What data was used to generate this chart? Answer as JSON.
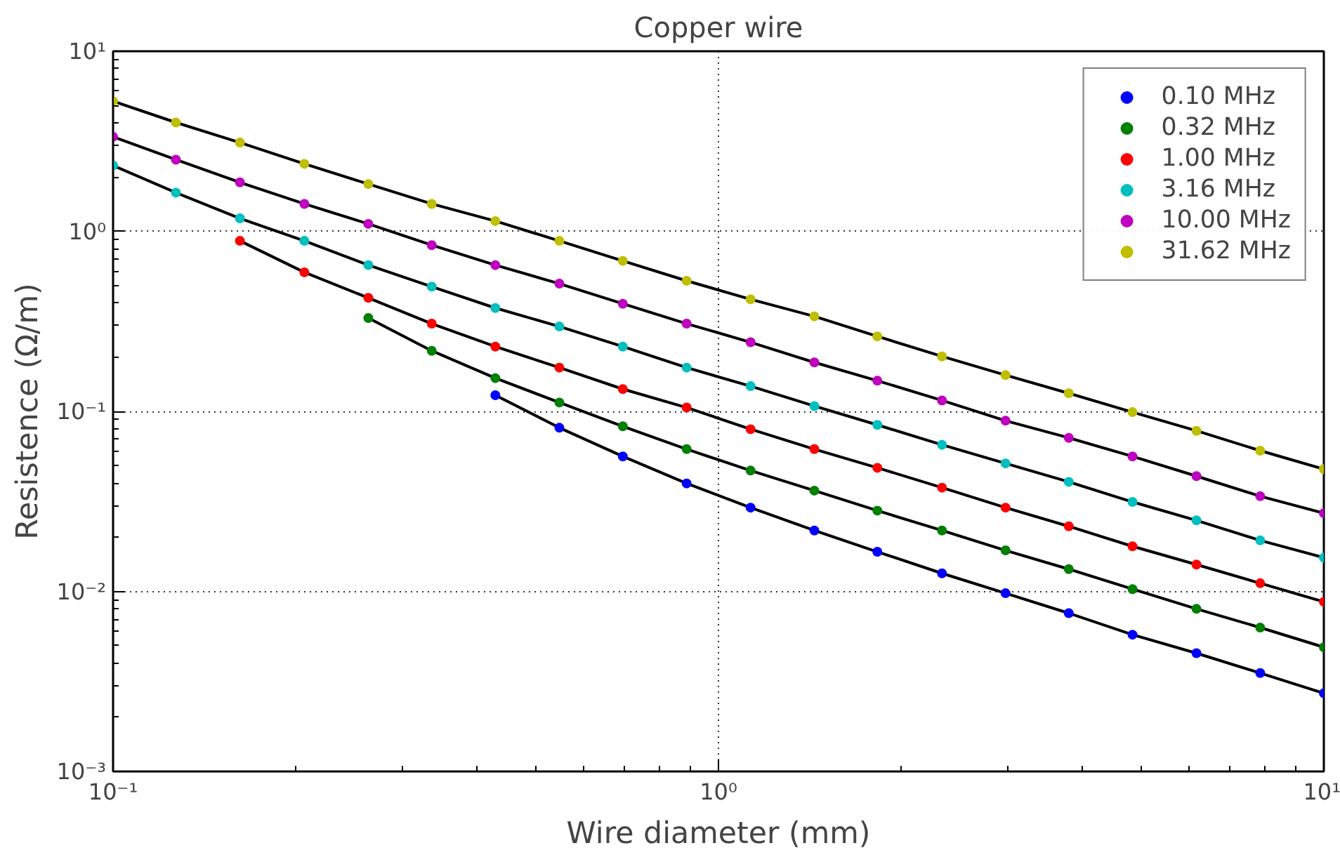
{
  "chart_data": {
    "type": "scatter",
    "title": "Copper wire",
    "xlabel": "Wire diameter (mm)",
    "ylabel": "Resistence (Ω/m)",
    "log": "xy",
    "grid": true,
    "legend": "top right",
    "marker": "circle",
    "xlim": [
      0.1,
      10
    ],
    "ylim": [
      0.001,
      10
    ],
    "xticks": [
      {
        "value": 0.1,
        "label": "10⁻¹"
      },
      {
        "value": 1,
        "label": "10⁰"
      },
      {
        "value": 10,
        "label": "10¹"
      }
    ],
    "yticks": [
      {
        "value": 0.001,
        "label": "10⁻³"
      },
      {
        "value": 0.01,
        "label": "10⁻²"
      },
      {
        "value": 0.1,
        "label": "10⁻¹"
      },
      {
        "value": 1,
        "label": "10⁰"
      },
      {
        "value": 10,
        "label": "10¹"
      }
    ],
    "x": [
      0.1,
      0.127,
      0.162,
      0.207,
      0.264,
      0.336,
      0.428,
      0.546,
      0.695,
      0.886,
      1.13,
      1.44,
      1.83,
      2.34,
      2.98,
      3.79,
      4.83,
      6.16,
      7.85,
      10
    ],
    "series": [
      {
        "type": "line",
        "color": "#000000",
        "line_style": "solid",
        "marker": "none",
        "values": [
          null,
          null,
          null,
          null,
          null,
          null,
          0.123,
          0.0811,
          0.0562,
          0.0398,
          0.0292,
          0.0218,
          0.0166,
          0.0126,
          0.00977,
          0.00757,
          0.00575,
          0.00454,
          0.00352,
          0.00272
        ]
      },
      {
        "type": "line",
        "color": "#000000",
        "line_style": "solid",
        "marker": "none",
        "values": [
          null,
          null,
          null,
          null,
          0.33,
          0.217,
          0.153,
          0.112,
          0.0826,
          0.0617,
          0.0469,
          0.0363,
          0.0281,
          0.0218,
          0.0169,
          0.0133,
          0.0103,
          0.008,
          0.0063,
          0.0049
        ]
      },
      {
        "type": "line",
        "color": "#000000",
        "line_style": "solid",
        "marker": "none",
        "values": [
          null,
          null,
          0.885,
          0.592,
          0.427,
          0.307,
          0.229,
          0.175,
          0.133,
          0.105,
          0.0796,
          0.0617,
          0.0486,
          0.0377,
          0.0292,
          0.023,
          0.0178,
          0.0141,
          0.0111,
          0.00875
        ]
      },
      {
        "type": "line",
        "color": "#000000",
        "line_style": "solid",
        "marker": "none",
        "values": [
          2.32,
          1.64,
          1.18,
          0.885,
          0.649,
          0.493,
          0.375,
          0.296,
          0.229,
          0.175,
          0.138,
          0.107,
          0.0841,
          0.0652,
          0.0514,
          0.0406,
          0.0314,
          0.0248,
          0.0192,
          0.0154
        ]
      },
      {
        "type": "line",
        "color": "#000000",
        "line_style": "solid",
        "marker": "none",
        "values": [
          3.35,
          2.5,
          1.87,
          1.42,
          1.1,
          0.838,
          0.649,
          0.512,
          0.396,
          0.307,
          0.242,
          0.187,
          0.148,
          0.115,
          0.0887,
          0.0713,
          0.0562,
          0.0437,
          0.0338,
          0.0272
        ]
      },
      {
        "type": "line",
        "color": "#000000",
        "line_style": "solid",
        "marker": "none",
        "values": [
          5.28,
          4.02,
          3.11,
          2.37,
          1.83,
          1.42,
          1.14,
          0.885,
          0.685,
          0.531,
          0.419,
          0.337,
          0.261,
          0.202,
          0.159,
          0.126,
          0.099,
          0.078,
          0.0605,
          0.0478
        ]
      },
      {
        "name": "0.10 MHz",
        "color": "#0000ff",
        "values": [
          null,
          null,
          null,
          null,
          null,
          null,
          0.123,
          0.0811,
          0.0562,
          0.0398,
          0.0292,
          0.0218,
          0.0166,
          0.0126,
          0.00977,
          0.00757,
          0.00575,
          0.00454,
          0.00352,
          0.00272
        ]
      },
      {
        "name": "0.32 MHz",
        "color": "#008000",
        "values": [
          null,
          null,
          null,
          null,
          0.33,
          0.217,
          0.153,
          0.112,
          0.0826,
          0.0617,
          0.0469,
          0.0363,
          0.0281,
          0.0218,
          0.0169,
          0.0133,
          0.0103,
          0.008,
          0.0063,
          0.0049
        ]
      },
      {
        "name": "1.00 MHz",
        "color": "#ff0000",
        "values": [
          null,
          null,
          0.885,
          0.592,
          0.427,
          0.307,
          0.229,
          0.175,
          0.133,
          0.105,
          0.0796,
          0.0617,
          0.0486,
          0.0377,
          0.0292,
          0.023,
          0.0178,
          0.0141,
          0.0111,
          0.00875
        ]
      },
      {
        "name": "3.16 MHz",
        "color": "#00bfbf",
        "values": [
          2.32,
          1.64,
          1.18,
          0.885,
          0.649,
          0.493,
          0.375,
          0.296,
          0.229,
          0.175,
          0.138,
          0.107,
          0.0841,
          0.0652,
          0.0514,
          0.0406,
          0.0314,
          0.0248,
          0.0192,
          0.0154
        ]
      },
      {
        "name": "10.00 MHz",
        "color": "#bf00bf",
        "values": [
          3.35,
          2.5,
          1.87,
          1.42,
          1.1,
          0.838,
          0.649,
          0.512,
          0.396,
          0.307,
          0.242,
          0.187,
          0.148,
          0.115,
          0.0887,
          0.0713,
          0.0562,
          0.0437,
          0.0338,
          0.0272
        ]
      },
      {
        "name": "31.62 MHz",
        "color": "#bfbf00",
        "values": [
          5.28,
          4.02,
          3.11,
          2.37,
          1.83,
          1.42,
          1.14,
          0.885,
          0.685,
          0.531,
          0.419,
          0.337,
          0.261,
          0.202,
          0.159,
          0.126,
          0.099,
          0.078,
          0.0605,
          0.0478
        ]
      }
    ]
  }
}
